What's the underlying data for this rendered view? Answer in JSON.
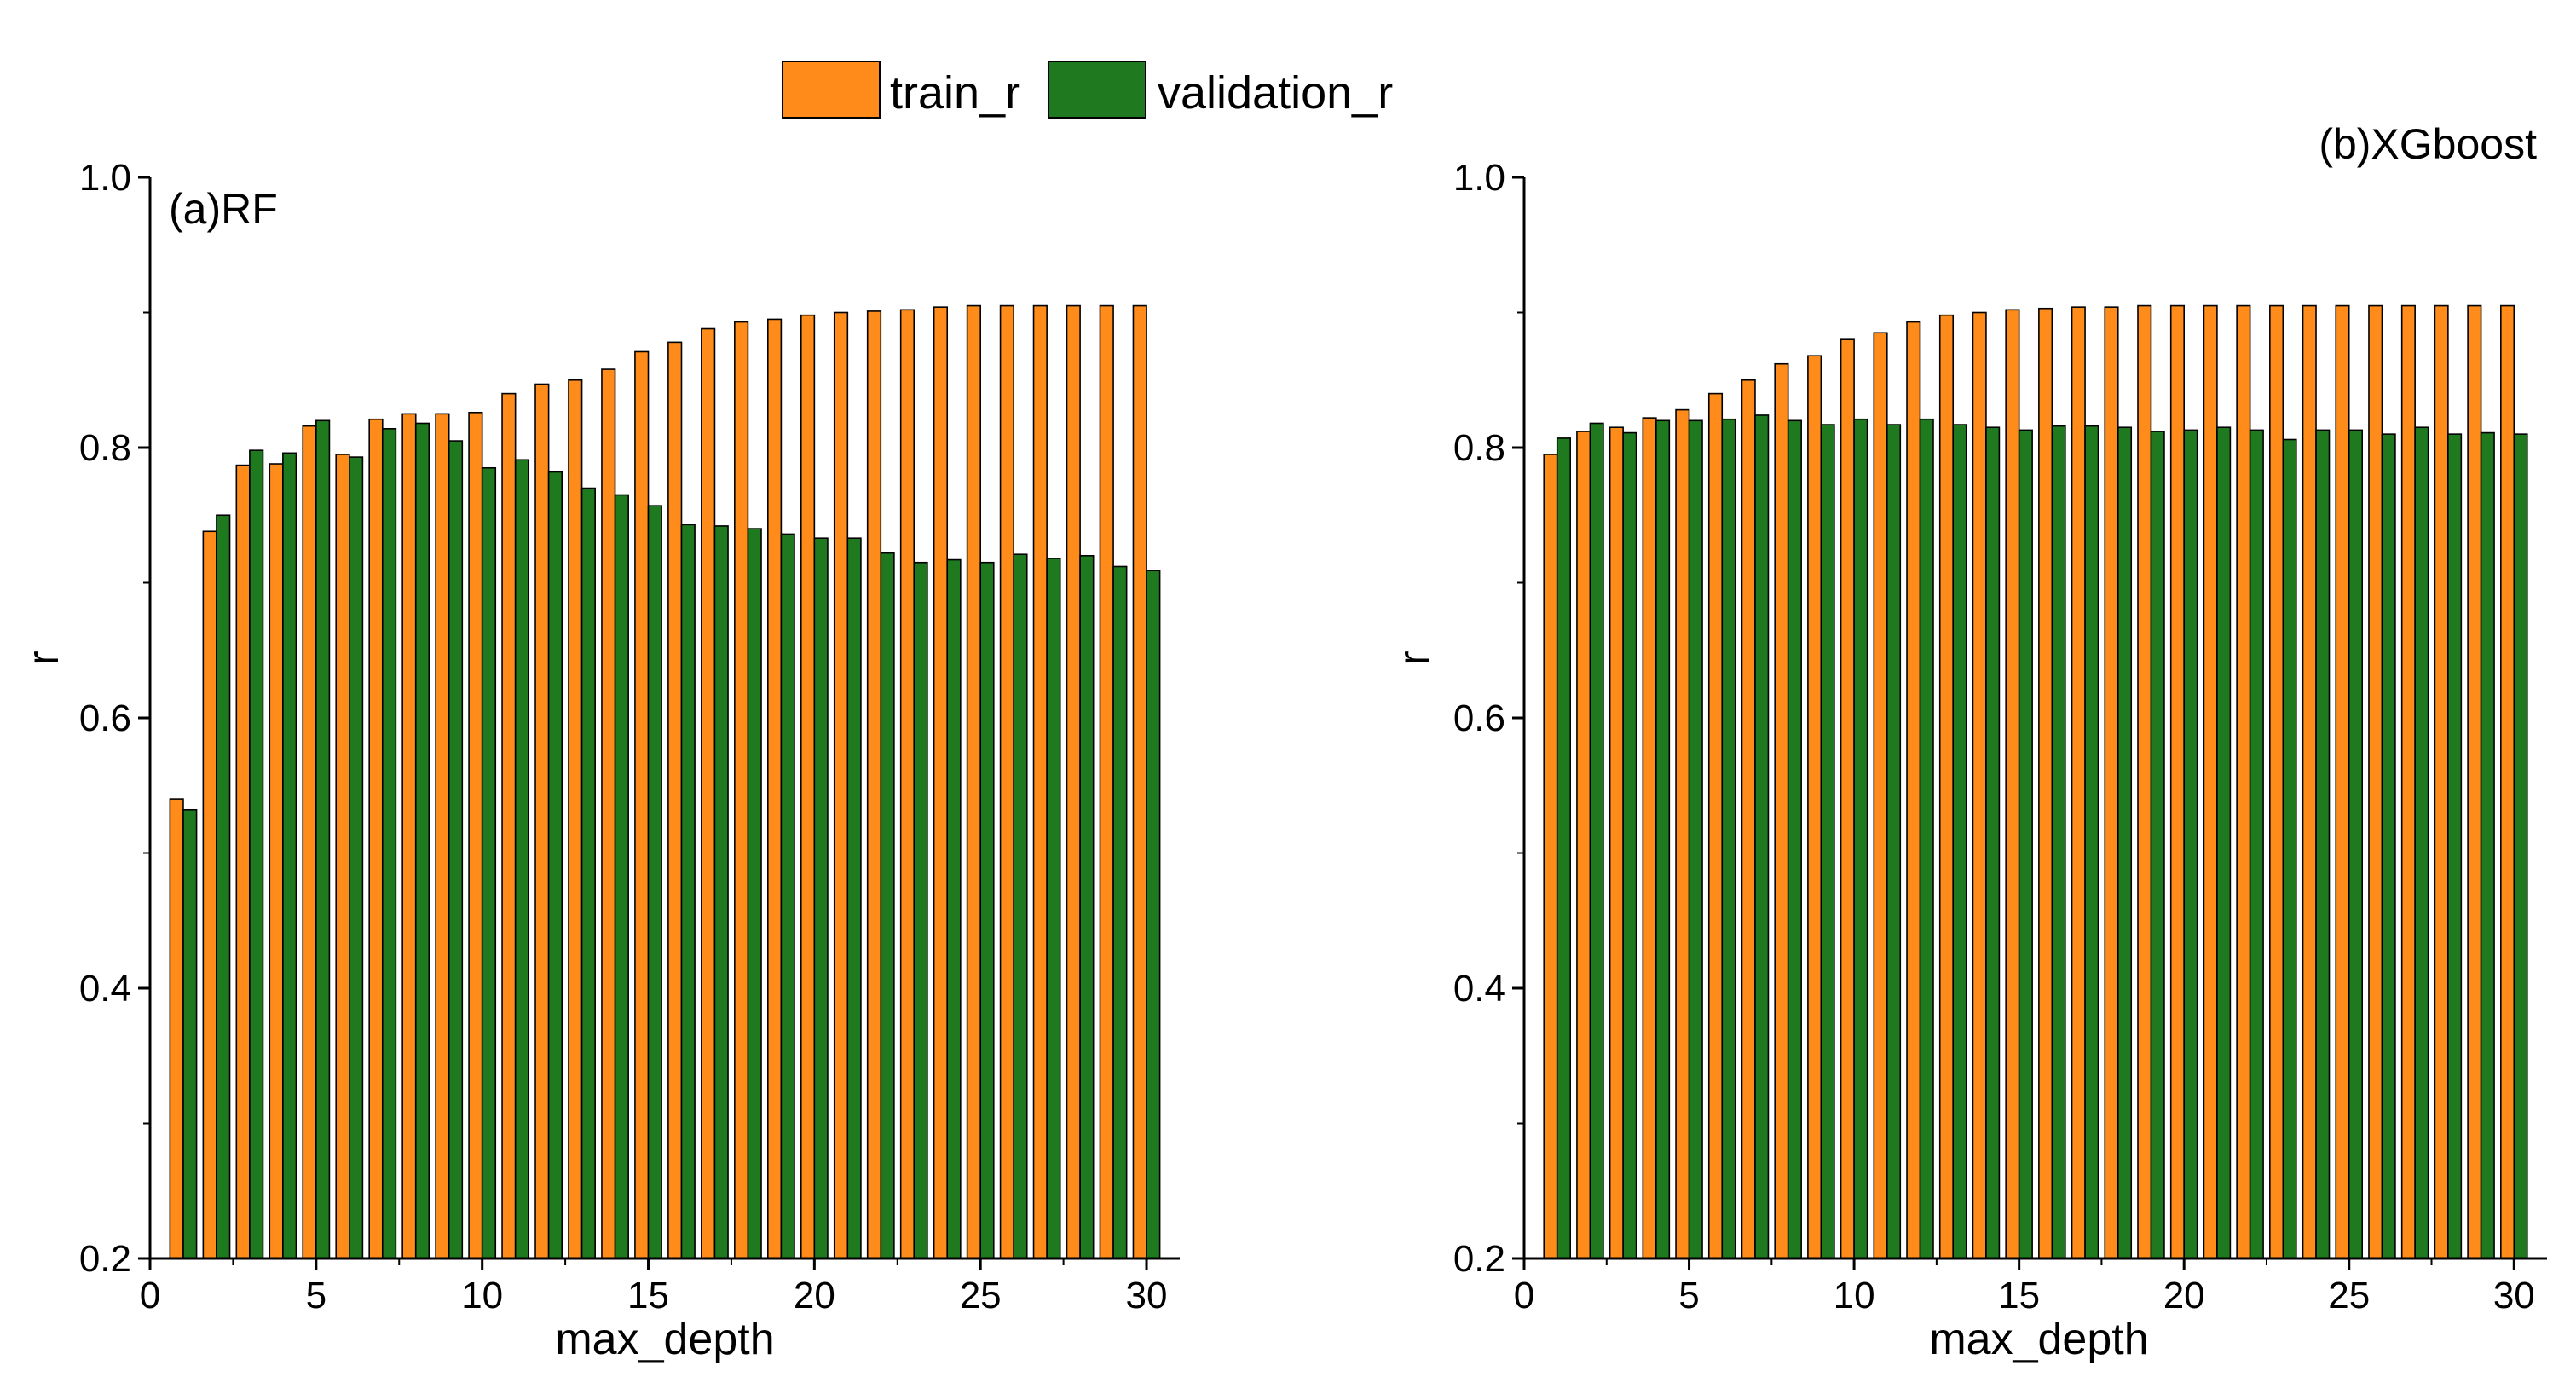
{
  "chart_data": {
    "type": "bar",
    "legend": {
      "placement": "top-center",
      "entries": [
        {
          "name": "train_r",
          "color": "#FF8C1A"
        },
        {
          "name": "validation_r",
          "color": "#1F7A1F"
        }
      ]
    },
    "panels": [
      {
        "id": "rf",
        "title": "(a)RF",
        "title_placement": "top-left",
        "xlabel": "max_depth",
        "ylabel": "r",
        "xlim": [
          0,
          31
        ],
        "ylim": [
          0.2,
          1.0
        ],
        "xticks": [
          0,
          5,
          10,
          15,
          20,
          25,
          30
        ],
        "xtick_labels": [
          "0",
          "5",
          "10",
          "15",
          "20",
          "25",
          "30"
        ],
        "yticks": [
          0.2,
          0.4,
          0.6,
          0.8,
          1.0
        ],
        "ytick_labels": [
          "0.2",
          "0.4",
          "0.6",
          "0.8",
          "1.0"
        ],
        "categories": [
          1,
          2,
          3,
          4,
          5,
          6,
          7,
          8,
          9,
          10,
          11,
          12,
          13,
          14,
          15,
          16,
          17,
          18,
          19,
          20,
          21,
          22,
          23,
          24,
          25,
          26,
          27,
          28,
          29,
          30
        ],
        "series": [
          {
            "name": "train_r",
            "values": [
              0.54,
              0.738,
              0.787,
              0.788,
              0.816,
              0.795,
              0.821,
              0.825,
              0.825,
              0.826,
              0.84,
              0.847,
              0.85,
              0.858,
              0.871,
              0.878,
              0.888,
              0.893,
              0.895,
              0.898,
              0.9,
              0.901,
              0.902,
              0.904,
              0.905,
              0.905,
              0.905,
              0.905,
              0.905,
              0.905
            ]
          },
          {
            "name": "validation_r",
            "values": [
              0.532,
              0.75,
              0.798,
              0.796,
              0.82,
              0.793,
              0.814,
              0.818,
              0.805,
              0.785,
              0.791,
              0.782,
              0.77,
              0.765,
              0.757,
              0.743,
              0.742,
              0.74,
              0.736,
              0.733,
              0.733,
              0.722,
              0.715,
              0.717,
              0.715,
              0.721,
              0.718,
              0.72,
              0.712,
              0.709
            ]
          }
        ]
      },
      {
        "id": "xgboost",
        "title": "(b)XGboost",
        "title_placement": "top-right",
        "xlabel": "max_depth",
        "ylabel": "r",
        "xlim": [
          0,
          31
        ],
        "ylim": [
          0.2,
          1.0
        ],
        "xticks": [
          0,
          5,
          10,
          15,
          20,
          25,
          30
        ],
        "xtick_labels": [
          "0",
          "5",
          "10",
          "15",
          "20",
          "25",
          "30"
        ],
        "yticks": [
          0.2,
          0.4,
          0.6,
          0.8,
          1.0
        ],
        "ytick_labels": [
          "0.2",
          "0.4",
          "0.6",
          "0.8",
          "1.0"
        ],
        "categories": [
          1,
          2,
          3,
          4,
          5,
          6,
          7,
          8,
          9,
          10,
          11,
          12,
          13,
          14,
          15,
          16,
          17,
          18,
          19,
          20,
          21,
          22,
          23,
          24,
          25,
          26,
          27,
          28,
          29,
          30
        ],
        "series": [
          {
            "name": "train_r",
            "values": [
              0.795,
              0.812,
              0.815,
              0.822,
              0.828,
              0.84,
              0.85,
              0.862,
              0.868,
              0.88,
              0.885,
              0.893,
              0.898,
              0.9,
              0.902,
              0.903,
              0.904,
              0.904,
              0.905,
              0.905,
              0.905,
              0.905,
              0.905,
              0.905,
              0.905,
              0.905,
              0.905,
              0.905,
              0.905,
              0.905
            ]
          },
          {
            "name": "validation_r",
            "values": [
              0.807,
              0.818,
              0.811,
              0.82,
              0.82,
              0.821,
              0.824,
              0.82,
              0.817,
              0.821,
              0.817,
              0.821,
              0.817,
              0.815,
              0.813,
              0.816,
              0.816,
              0.815,
              0.812,
              0.813,
              0.815,
              0.813,
              0.806,
              0.813,
              0.813,
              0.81,
              0.815,
              0.81,
              0.811,
              0.81
            ]
          }
        ]
      }
    ]
  }
}
